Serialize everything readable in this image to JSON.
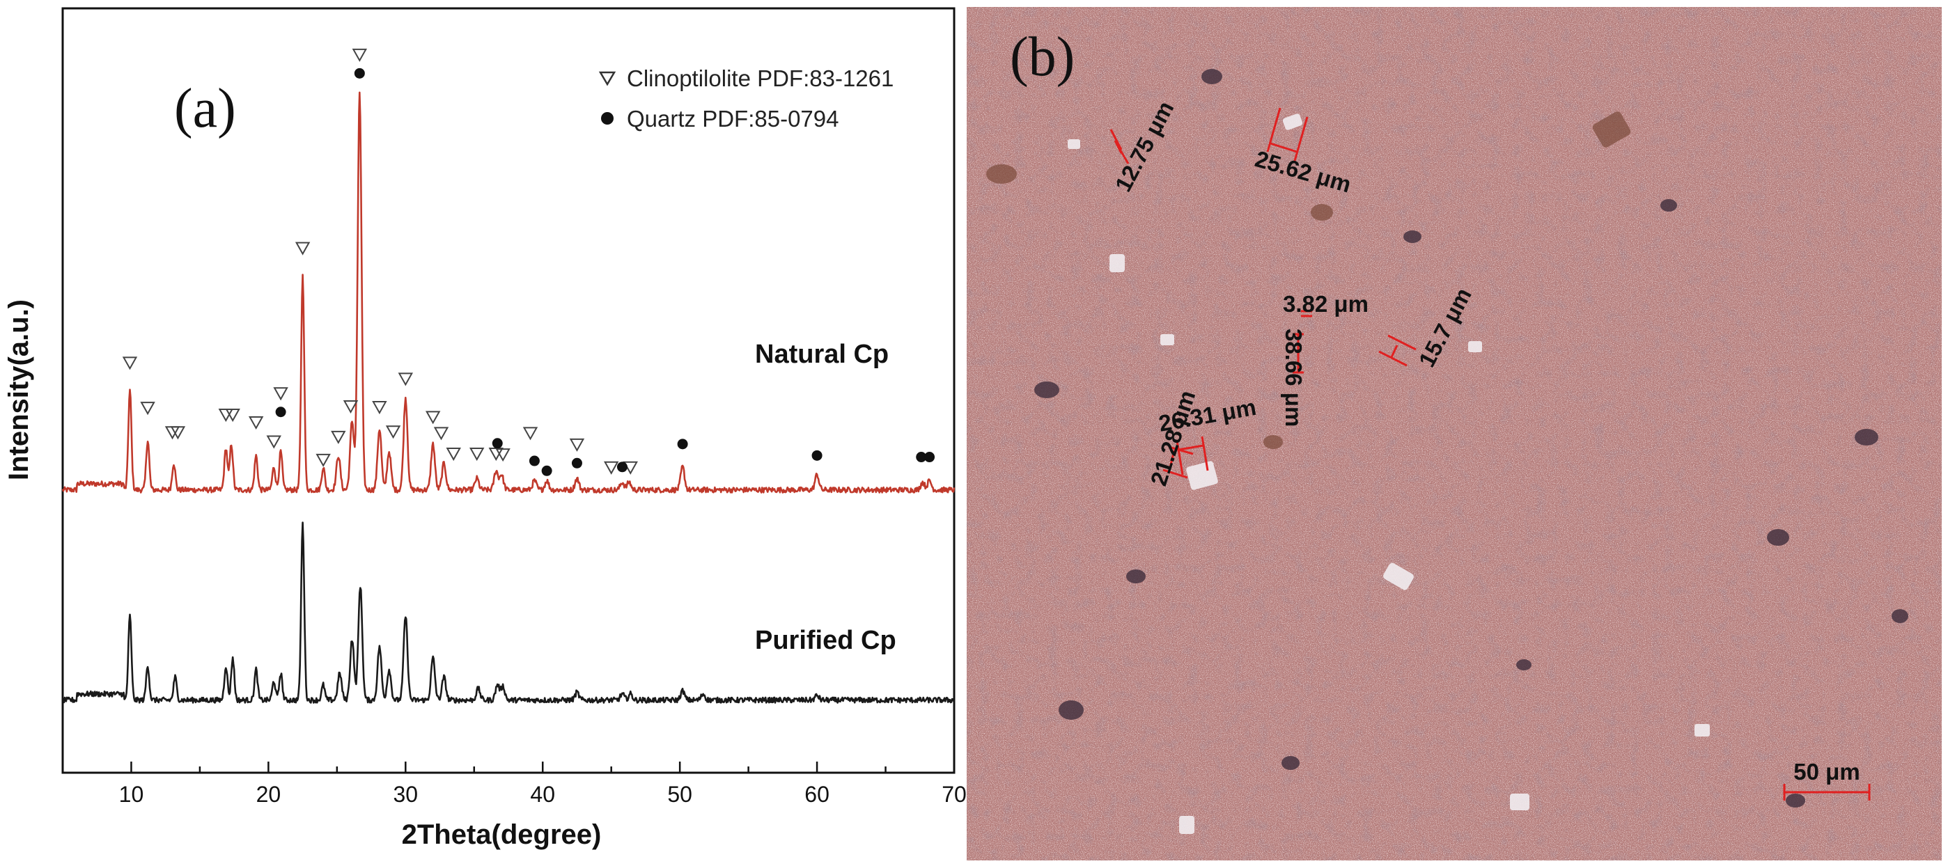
{
  "panel_a": {
    "label": "(a)",
    "legend": {
      "clino": "Clinoptilolite PDF:83-1261",
      "quartz": "Quartz PDF:85-0794"
    },
    "series_labels": {
      "natural": "Natural Cp",
      "purified": "Purified Cp"
    }
  },
  "panel_b": {
    "label": "(b)",
    "scale_bar": "50 μm",
    "measurements": [
      "25.62 μm",
      "12.75 μm",
      "26.31 μm",
      "3.82 μm",
      "38.66 μm",
      "15.7 μm",
      "21.28 μm"
    ],
    "colors": {
      "background": "#b47c7a",
      "annotation": "#e02020"
    }
  },
  "chart_data": {
    "type": "line",
    "title": "",
    "xlabel": "2Theta(degree)",
    "ylabel": "Intensity(a.u.)",
    "xlim": [
      5,
      70
    ],
    "ylim": [
      0,
      1
    ],
    "grid": false,
    "legend_position": "top-right",
    "x_ticks": [
      10,
      20,
      30,
      40,
      50,
      60,
      70
    ],
    "x_tick_labels": [
      "10",
      "20",
      "30",
      "40",
      "50",
      "60",
      "70"
    ],
    "series": [
      {
        "name": "Natural Cp",
        "color": "#c0392b",
        "baseline": 0.37,
        "peaks": [
          [
            9.9,
            0.13
          ],
          [
            11.2,
            0.065
          ],
          [
            13.1,
            0.035
          ],
          [
            16.9,
            0.055
          ],
          [
            17.3,
            0.06
          ],
          [
            19.1,
            0.045
          ],
          [
            20.4,
            0.03
          ],
          [
            20.9,
            0.05
          ],
          [
            22.5,
            0.28
          ],
          [
            24.0,
            0.03
          ],
          [
            25.1,
            0.045
          ],
          [
            26.1,
            0.09
          ],
          [
            26.65,
            0.52
          ],
          [
            28.1,
            0.08
          ],
          [
            28.8,
            0.05
          ],
          [
            30.0,
            0.12
          ],
          [
            32.0,
            0.06
          ],
          [
            32.8,
            0.035
          ],
          [
            35.2,
            0.015
          ],
          [
            36.6,
            0.025
          ],
          [
            37.0,
            0.02
          ],
          [
            39.4,
            0.012
          ],
          [
            40.3,
            0.012
          ],
          [
            42.5,
            0.015
          ],
          [
            45.8,
            0.01
          ],
          [
            46.3,
            0.01
          ],
          [
            50.2,
            0.03
          ],
          [
            60.0,
            0.02
          ],
          [
            67.7,
            0.01
          ],
          [
            68.2,
            0.012
          ]
        ]
      },
      {
        "name": "Purified Cp",
        "color": "#1a1a1a",
        "baseline": 0.095,
        "peaks": [
          [
            9.9,
            0.11
          ],
          [
            11.2,
            0.045
          ],
          [
            13.2,
            0.03
          ],
          [
            16.9,
            0.045
          ],
          [
            17.4,
            0.055
          ],
          [
            19.1,
            0.04
          ],
          [
            20.4,
            0.025
          ],
          [
            20.9,
            0.035
          ],
          [
            22.5,
            0.23
          ],
          [
            24.0,
            0.02
          ],
          [
            25.2,
            0.035
          ],
          [
            26.1,
            0.08
          ],
          [
            26.7,
            0.15
          ],
          [
            28.1,
            0.07
          ],
          [
            28.8,
            0.04
          ],
          [
            30.0,
            0.11
          ],
          [
            32.0,
            0.055
          ],
          [
            32.8,
            0.03
          ],
          [
            35.3,
            0.015
          ],
          [
            36.7,
            0.02
          ],
          [
            37.1,
            0.018
          ],
          [
            42.5,
            0.01
          ],
          [
            45.8,
            0.008
          ],
          [
            46.4,
            0.008
          ],
          [
            50.2,
            0.012
          ],
          [
            51.7,
            0.008
          ],
          [
            60.0,
            0.006
          ]
        ]
      }
    ],
    "markers": {
      "clinoptilolite": [
        [
          9.9,
          0.537
        ],
        [
          11.2,
          0.478
        ],
        [
          13.0,
          0.446
        ],
        [
          13.4,
          0.446
        ],
        [
          16.9,
          0.469
        ],
        [
          17.4,
          0.469
        ],
        [
          19.1,
          0.459
        ],
        [
          20.4,
          0.434
        ],
        [
          20.9,
          0.497
        ],
        [
          22.5,
          0.687
        ],
        [
          24.0,
          0.41
        ],
        [
          25.1,
          0.44
        ],
        [
          26.0,
          0.48
        ],
        [
          26.65,
          0.94
        ],
        [
          28.1,
          0.479
        ],
        [
          29.1,
          0.447
        ],
        [
          30.0,
          0.516
        ],
        [
          32.0,
          0.466
        ],
        [
          32.6,
          0.445
        ],
        [
          33.5,
          0.418
        ],
        [
          35.2,
          0.418
        ],
        [
          36.6,
          0.418
        ],
        [
          37.1,
          0.417
        ],
        [
          39.1,
          0.445
        ],
        [
          42.5,
          0.43
        ],
        [
          45.0,
          0.4
        ],
        [
          46.4,
          0.4
        ]
      ],
      "quartz": [
        [
          20.9,
          0.472
        ],
        [
          26.65,
          0.915
        ],
        [
          36.7,
          0.431
        ],
        [
          39.4,
          0.408
        ],
        [
          40.3,
          0.395
        ],
        [
          42.5,
          0.405
        ],
        [
          45.8,
          0.4
        ],
        [
          50.2,
          0.43
        ],
        [
          60.0,
          0.415
        ],
        [
          67.6,
          0.413
        ],
        [
          68.2,
          0.413
        ]
      ]
    }
  }
}
